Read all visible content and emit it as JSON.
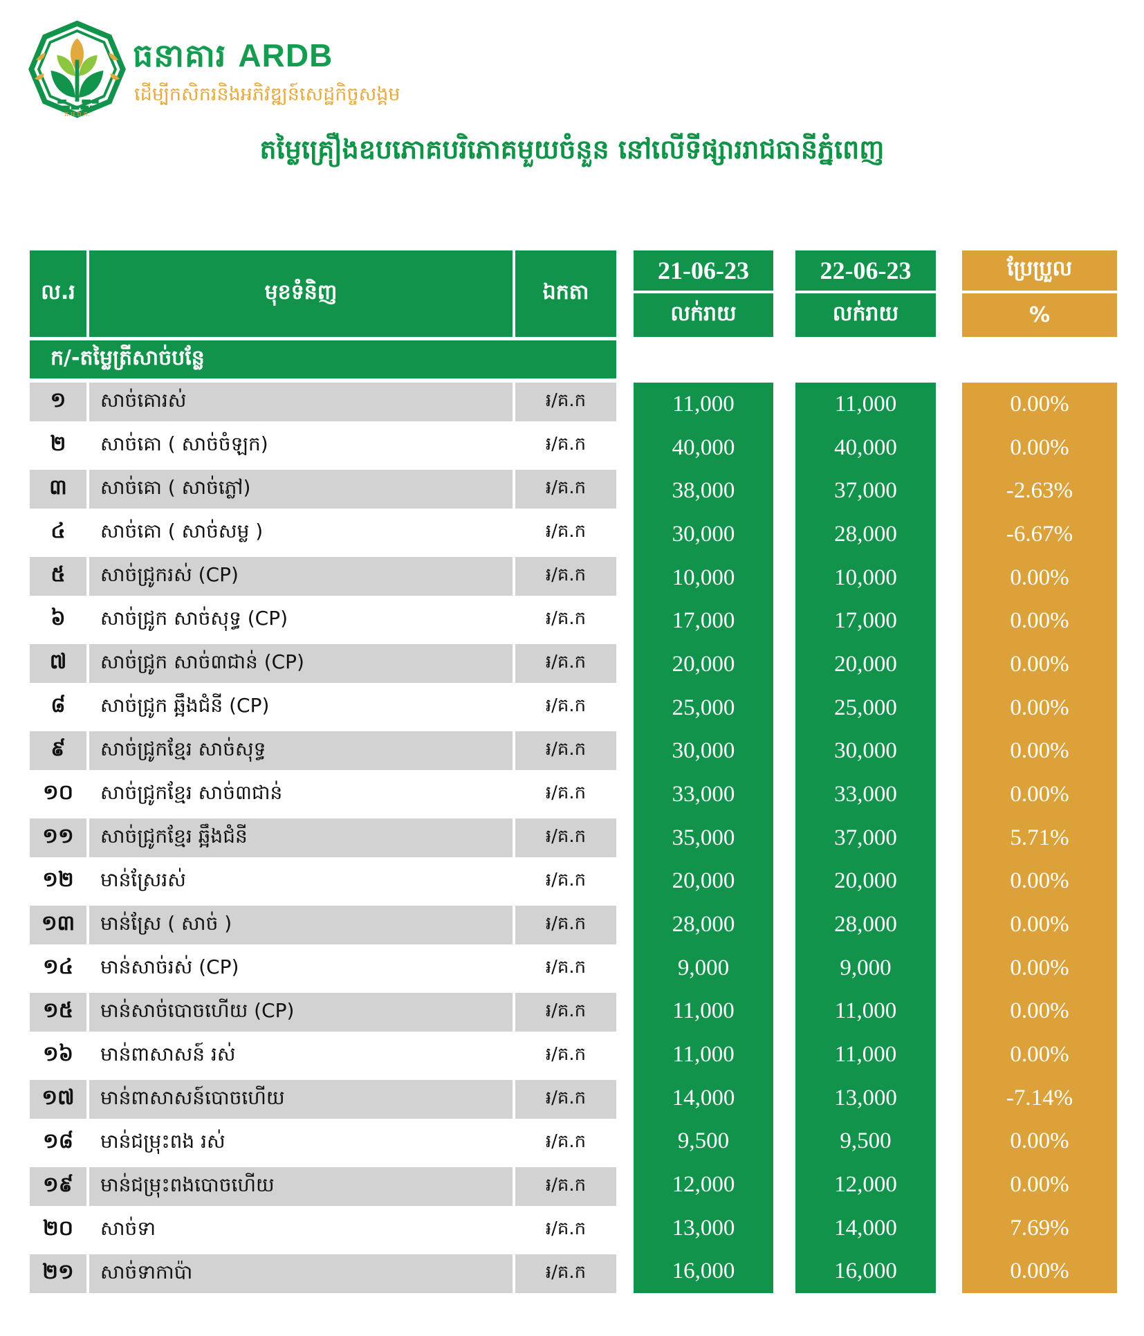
{
  "colors": {
    "green": "#12934B",
    "orange": "#DCA139",
    "gray": "#D2D2D2",
    "brand_green": "#149C50",
    "title_green": "#0E9347",
    "tagline_gold": "#E7A93C",
    "leaf_light": "#8CC63F",
    "gold": "#E2A93E"
  },
  "brand": {
    "name_kh": "ធនាគារ",
    "name_en": "ARDB",
    "tagline": "ដើម្បីកសិករនិងអភិវឌ្ឍន៍សេដ្ឋកិច្ចសង្គម",
    "logo_abbr": "ធ.អ.ច.ក."
  },
  "title": "តម្លៃគ្រឿងឧបភោគបរិភោគមួយចំនួន នៅលើទីផ្សាររាជធានីភ្នំពេញ",
  "table": {
    "col_no": "ល.រ",
    "col_product": "មុខទំនិញ",
    "col_unit": "ឯកតា",
    "date1": "21-06-23",
    "date2": "22-06-23",
    "retail_label": "លក់រាយ",
    "change_label": "ប្រែប្រួល",
    "change_unit": "%",
    "section_header": "ក/-តម្លៃត្រីសាច់បន្លែ",
    "rows": [
      {
        "no": "១",
        "product": "សាច់គោរស់",
        "unit": "៛/គ.ក",
        "price1": "11,000",
        "price2": "11,000",
        "change": "0.00%"
      },
      {
        "no": "២",
        "product": "សាច់គោ ( សាច់ចំឡក)",
        "unit": "៛/គ.ក",
        "price1": "40,000",
        "price2": "40,000",
        "change": "0.00%"
      },
      {
        "no": "៣",
        "product": "សាច់គោ ( សាច់ភ្លៅ)",
        "unit": "៛/គ.ក",
        "price1": "38,000",
        "price2": "37,000",
        "change": "-2.63%"
      },
      {
        "no": "៤",
        "product": "សាច់គោ ( សាច់សម្ល )",
        "unit": "៛/គ.ក",
        "price1": "30,000",
        "price2": "28,000",
        "change": "-6.67%"
      },
      {
        "no": "៥",
        "product": "សាច់ជ្រូករស់ (CP)",
        "unit": "៛/គ.ក",
        "price1": "10,000",
        "price2": "10,000",
        "change": "0.00%"
      },
      {
        "no": "៦",
        "product": "សាច់ជ្រូក សាច់សុទ្ធ (CP)",
        "unit": "៛/គ.ក",
        "price1": "17,000",
        "price2": "17,000",
        "change": "0.00%"
      },
      {
        "no": "៧",
        "product": "សាច់ជ្រូក សាច់៣ជាន់ (CP)",
        "unit": "៛/គ.ក",
        "price1": "20,000",
        "price2": "20,000",
        "change": "0.00%"
      },
      {
        "no": "៨",
        "product": "សាច់ជ្រូក ឆ្អឹងជំនី (CP)",
        "unit": "៛/គ.ក",
        "price1": "25,000",
        "price2": "25,000",
        "change": "0.00%"
      },
      {
        "no": "៩",
        "product": "សាច់ជ្រូកខ្មែរ សាច់សុទ្ធ",
        "unit": "៛/គ.ក",
        "price1": "30,000",
        "price2": "30,000",
        "change": "0.00%"
      },
      {
        "no": "១០",
        "product": "សាច់ជ្រូកខ្មែរ សាច់៣ជាន់",
        "unit": "៛/គ.ក",
        "price1": "33,000",
        "price2": "33,000",
        "change": "0.00%"
      },
      {
        "no": "១១",
        "product": "សាច់ជ្រូកខ្មែរ ឆ្អឹងជំនី",
        "unit": "៛/គ.ក",
        "price1": "35,000",
        "price2": "37,000",
        "change": "5.71%"
      },
      {
        "no": "១២",
        "product": "មាន់ស្រែរស់",
        "unit": "៛/គ.ក",
        "price1": "20,000",
        "price2": "20,000",
        "change": "0.00%"
      },
      {
        "no": "១៣",
        "product": "មាន់ស្រែ ( សាច់ )",
        "unit": "៛/គ.ក",
        "price1": "28,000",
        "price2": "28,000",
        "change": "0.00%"
      },
      {
        "no": "១៤",
        "product": "មាន់សាច់រស់ (CP)",
        "unit": "៛/គ.ក",
        "price1": "9,000",
        "price2": "9,000",
        "change": "0.00%"
      },
      {
        "no": "១៥",
        "product": "មាន់សាច់បោចហើយ (CP)",
        "unit": "៛/គ.ក",
        "price1": "11,000",
        "price2": "11,000",
        "change": "0.00%"
      },
      {
        "no": "១៦",
        "product": "មាន់ពាសាសន៍ រស់",
        "unit": "៛/គ.ក",
        "price1": "11,000",
        "price2": "11,000",
        "change": "0.00%"
      },
      {
        "no": "១៧",
        "product": "មាន់ពាសាសន៍បោចហើយ",
        "unit": "៛/គ.ក",
        "price1": "14,000",
        "price2": "13,000",
        "change": "-7.14%"
      },
      {
        "no": "១៨",
        "product": "មាន់ជម្រុះពង រស់",
        "unit": "៛/គ.ក",
        "price1": "9,500",
        "price2": "9,500",
        "change": "0.00%"
      },
      {
        "no": "១៩",
        "product": "មាន់ជម្រុះពងបោចហើយ",
        "unit": "៛/គ.ក",
        "price1": "12,000",
        "price2": "12,000",
        "change": "0.00%"
      },
      {
        "no": "២០",
        "product": "សាច់ទា",
        "unit": "៛/គ.ក",
        "price1": "13,000",
        "price2": "14,000",
        "change": "7.69%"
      },
      {
        "no": "២១",
        "product": "សាច់ទាកាប៉ា",
        "unit": "៛/គ.ក",
        "price1": "16,000",
        "price2": "16,000",
        "change": "0.00%"
      }
    ]
  }
}
